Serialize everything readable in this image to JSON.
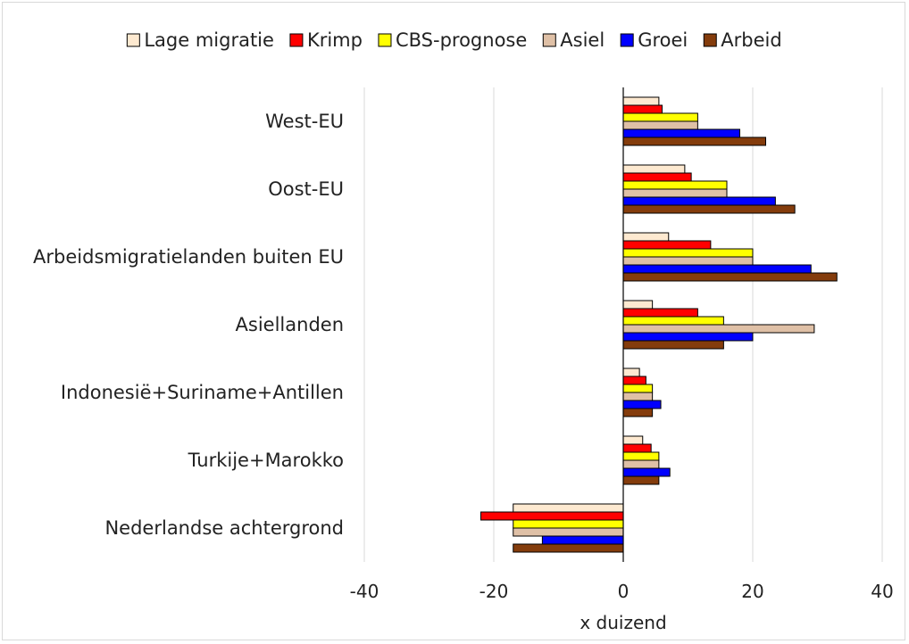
{
  "chart_data": {
    "type": "bar",
    "orientation": "horizontal",
    "categories": [
      "West-EU",
      "Oost-EU",
      "Arbeidsmigratielanden buiten EU",
      "Asiellanden",
      "Indonesië+Suriname+Antillen",
      "Turkije+Marokko",
      "Nederlandse achtergrond"
    ],
    "series": [
      {
        "name": "Lage migratie",
        "color": "#fde9d0",
        "values": [
          5.5,
          9.5,
          7,
          4.5,
          2.5,
          3,
          -17
        ]
      },
      {
        "name": "Krimp",
        "color": "#ff0000",
        "values": [
          6,
          10.5,
          13.5,
          11.5,
          3.5,
          4.3,
          -22
        ]
      },
      {
        "name": "CBS-prognose",
        "color": "#ffff00",
        "values": [
          11.5,
          16,
          20,
          15.5,
          4.5,
          5.5,
          -17
        ]
      },
      {
        "name": "Asiel",
        "color": "#dfc0a6",
        "values": [
          11.5,
          16,
          20,
          29.5,
          4.5,
          5.5,
          -17
        ]
      },
      {
        "name": "Groei",
        "color": "#0000ff",
        "values": [
          18,
          23.5,
          29,
          20,
          5.8,
          7.2,
          -12.5
        ]
      },
      {
        "name": "Arbeid",
        "color": "#843c0c",
        "values": [
          22,
          26.5,
          33,
          15.5,
          4.5,
          5.5,
          -17
        ]
      }
    ],
    "xlabel": "x duizend",
    "ylabel": "",
    "xlim": [
      -40,
      40
    ],
    "xticks": [
      -40,
      -20,
      0,
      20,
      40
    ],
    "grid": "vertical",
    "legend": "top"
  }
}
